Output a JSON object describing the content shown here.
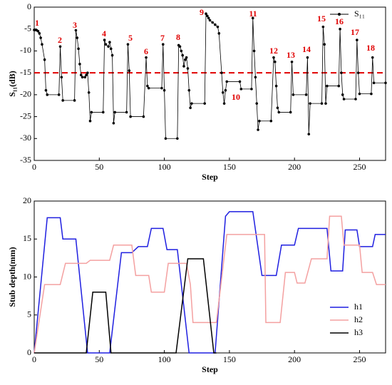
{
  "chart_data": [
    {
      "type": "line",
      "xlabel": "Step",
      "ylabel": "S₁₁(dB)",
      "xlim": [
        0,
        270
      ],
      "xticks": [
        0,
        50,
        100,
        150,
        200,
        250
      ],
      "ylim": [
        -35,
        0
      ],
      "yticks": [
        -35,
        -30,
        -25,
        -20,
        -15,
        -10,
        -5,
        0
      ],
      "markers": true,
      "legend": "upper right",
      "hline": {
        "value": -15,
        "color": "#e00000",
        "style": "dashed"
      },
      "annotations": [
        "1",
        "2",
        "3",
        "4",
        "5",
        "6",
        "7",
        "8",
        "9",
        "10",
        "11",
        "12",
        "13",
        "14",
        "15",
        "16",
        "17",
        "18"
      ],
      "annotation_color": "#e00000",
      "series": [
        {
          "name": "S₁₁",
          "color": "#000000",
          "x": [
            0,
            1,
            2,
            3,
            4,
            5,
            6,
            8,
            9,
            10,
            19,
            20,
            21,
            22,
            31,
            32,
            33,
            34,
            35,
            36,
            37,
            39,
            40,
            41,
            42,
            43,
            44,
            53,
            54,
            55,
            57,
            58,
            59,
            60,
            61,
            62,
            71,
            72,
            73,
            74,
            84,
            86,
            87,
            88,
            98,
            99,
            100,
            101,
            110,
            111,
            112,
            113,
            114,
            115,
            116,
            117,
            118,
            119,
            120,
            121,
            131,
            132,
            133,
            134,
            135,
            137,
            139,
            141,
            142,
            144,
            145,
            146,
            147,
            148,
            158,
            159,
            167,
            168,
            169,
            170,
            171,
            172,
            173,
            182,
            184,
            185,
            186,
            187,
            188,
            197,
            198,
            199,
            209,
            210,
            211,
            212,
            221,
            222,
            223,
            224,
            225,
            234,
            235,
            236,
            237,
            238,
            247,
            248,
            249,
            250,
            259,
            260,
            261,
            270
          ],
          "values": [
            -5.2,
            -5.2,
            -5.3,
            -5.5,
            -6,
            -7,
            -8.5,
            -12,
            -19,
            -20,
            -20,
            -9,
            -16,
            -21.3,
            -21.3,
            -5.3,
            -7,
            -9.5,
            -13,
            -15.5,
            -16,
            -16,
            -15.5,
            -15,
            -19.5,
            -26,
            -24,
            -24,
            -7.5,
            -8.5,
            -9,
            -8,
            -9.5,
            -11,
            -26.5,
            -24,
            -24,
            -8.5,
            -14.5,
            -25,
            -25,
            -11.5,
            -18,
            -18.5,
            -18.5,
            -8.5,
            -19,
            -30,
            -30,
            -8.7,
            -9,
            -10,
            -11,
            -13.5,
            -12,
            -11.5,
            -14,
            -19,
            -23,
            -22,
            -22,
            -1.5,
            -2,
            -2.5,
            -3,
            -3.5,
            -4,
            -4.5,
            -6,
            -15,
            -19.5,
            -22,
            -19,
            -17,
            -17,
            -18.7,
            -18.7,
            -2.5,
            -10,
            -16,
            -22,
            -28,
            -26,
            -26,
            -11.5,
            -12.5,
            -18,
            -23,
            -24,
            -24,
            -12.5,
            -20,
            -20,
            -11.5,
            -29,
            -22,
            -22,
            -4.5,
            -8.5,
            -22,
            -18,
            -18,
            -5,
            -15,
            -20,
            -21,
            -21,
            -7.5,
            -15,
            -19.8,
            -19.8,
            -11.5,
            -17.3,
            -17.3
          ]
        }
      ]
    },
    {
      "type": "line",
      "xlabel": "Step",
      "ylabel": "Stub depth(mm)",
      "xlim": [
        0,
        270
      ],
      "xticks": [
        0,
        50,
        100,
        150,
        200,
        250
      ],
      "ylim": [
        0,
        20
      ],
      "yticks": [
        0,
        5,
        10,
        15,
        20
      ],
      "markers": false,
      "legend": "lower right",
      "series": [
        {
          "name": "h1",
          "color": "#1f1fe0",
          "x": [
            0,
            10,
            20,
            22,
            32,
            41,
            58,
            67,
            75,
            80,
            87,
            90,
            99,
            102,
            110,
            119,
            139,
            147,
            150,
            168,
            175,
            186,
            190,
            200,
            203,
            225,
            228,
            237,
            239,
            248,
            250,
            260,
            262,
            270
          ],
          "values": [
            0,
            17.8,
            17.8,
            15,
            15,
            0,
            0,
            13.2,
            13.2,
            14,
            14,
            16.4,
            16.4,
            13.6,
            13.6,
            0,
            0,
            18,
            18.6,
            18.6,
            10.2,
            10.2,
            14.2,
            14.2,
            16.4,
            16.4,
            10.8,
            10.8,
            16.2,
            16.2,
            14,
            14,
            15.6,
            15.6
          ]
        },
        {
          "name": "h2",
          "color": "#f4a0a0",
          "x": [
            0,
            8,
            20,
            24,
            40,
            43,
            58,
            61,
            75,
            78,
            88,
            90,
            100,
            103,
            117,
            120,
            122,
            140,
            148,
            177,
            178,
            189,
            193,
            200,
            202,
            208,
            213,
            225,
            227,
            236,
            238,
            250,
            252,
            260,
            263,
            270
          ],
          "values": [
            0,
            9,
            9,
            11.8,
            11.8,
            12.2,
            12.2,
            14.2,
            14.2,
            10.2,
            10.2,
            8,
            8,
            11.8,
            11.8,
            9,
            4,
            4,
            15.6,
            15.6,
            4,
            4,
            10.6,
            10.6,
            9.2,
            9.2,
            12.4,
            12.4,
            18,
            18,
            14.2,
            14.2,
            10.6,
            10.6,
            9,
            9
          ]
        },
        {
          "name": "h3",
          "color": "#000000",
          "x": [
            0,
            40,
            45,
            55,
            59,
            109,
            118,
            130,
            138,
            140
          ],
          "values": [
            0,
            0,
            8,
            8,
            0,
            0,
            12.4,
            12.4,
            0,
            0
          ]
        }
      ]
    }
  ]
}
